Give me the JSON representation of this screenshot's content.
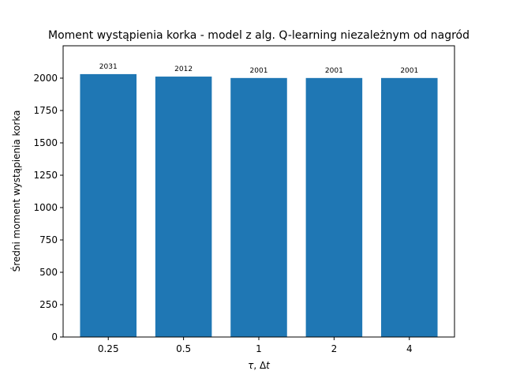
{
  "chart_data": {
    "type": "bar",
    "title": "Moment wystąpienia korka - model z alg. Q-learning niezależnym od nagród",
    "xlabel_parts": [
      "τ",
      ", Δ",
      "t"
    ],
    "ylabel": "Średni moment wystąpienia korka",
    "categories": [
      "0.25",
      "0.5",
      "1",
      "2",
      "4"
    ],
    "values": [
      2031,
      2012,
      2001,
      2001,
      2001
    ],
    "ylim": [
      0,
      2250
    ],
    "yticks": [
      0,
      250,
      500,
      750,
      1000,
      1250,
      1500,
      1750,
      2000
    ],
    "grid": false,
    "legend": "none",
    "bar_color": "#1f77b4"
  }
}
